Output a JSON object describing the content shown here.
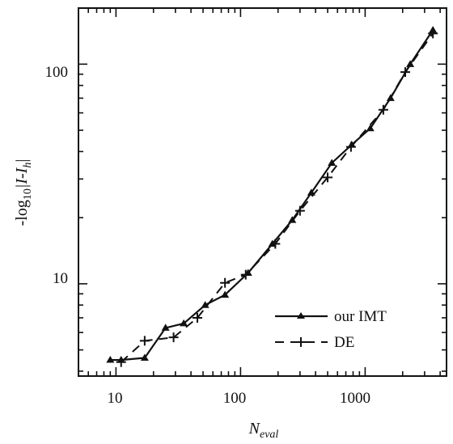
{
  "chart_data": {
    "type": "line",
    "title": "",
    "xlabel": "N",
    "xlabel_sub": "eval",
    "ylabel_prefix": "-log",
    "ylabel_sub": "10",
    "ylabel_body": "|I-I",
    "ylabel_body_sub": "h",
    "ylabel_end": "|",
    "x_scale": "log",
    "y_scale": "log",
    "xlim": [
      5,
      4500
    ],
    "ylim": [
      3.8,
      180
    ],
    "x_ticks": [
      10,
      100,
      1000
    ],
    "x_tick_labels": [
      "10",
      "100",
      "1000"
    ],
    "y_ticks": [
      10,
      100
    ],
    "y_tick_labels": [
      "10",
      "100"
    ],
    "grid": false,
    "legend_position": "bottom-right",
    "series": [
      {
        "name": "our IMT",
        "style": "solid",
        "marker": "triangle",
        "color": "#111111",
        "x": [
          9,
          11,
          17,
          25,
          35,
          52,
          75,
          115,
          180,
          260,
          370,
          540,
          780,
          1100,
          1600,
          2300,
          3500
        ],
        "y": [
          4.5,
          4.5,
          4.6,
          6.3,
          6.6,
          8.0,
          8.9,
          11.2,
          15.2,
          19.5,
          26.0,
          35.5,
          43.0,
          51.0,
          70.0,
          100.0,
          143.0
        ]
      },
      {
        "name": "DE",
        "style": "dashed",
        "marker": "plus",
        "color": "#111111",
        "x": [
          11,
          17,
          29,
          45,
          75,
          110,
          190,
          300,
          500,
          770,
          1400,
          2100,
          3500
        ],
        "y": [
          4.4,
          5.5,
          5.7,
          7.0,
          10.1,
          11.0,
          15.2,
          21.5,
          30.5,
          42.0,
          62.0,
          92.0,
          138.0
        ]
      }
    ]
  }
}
